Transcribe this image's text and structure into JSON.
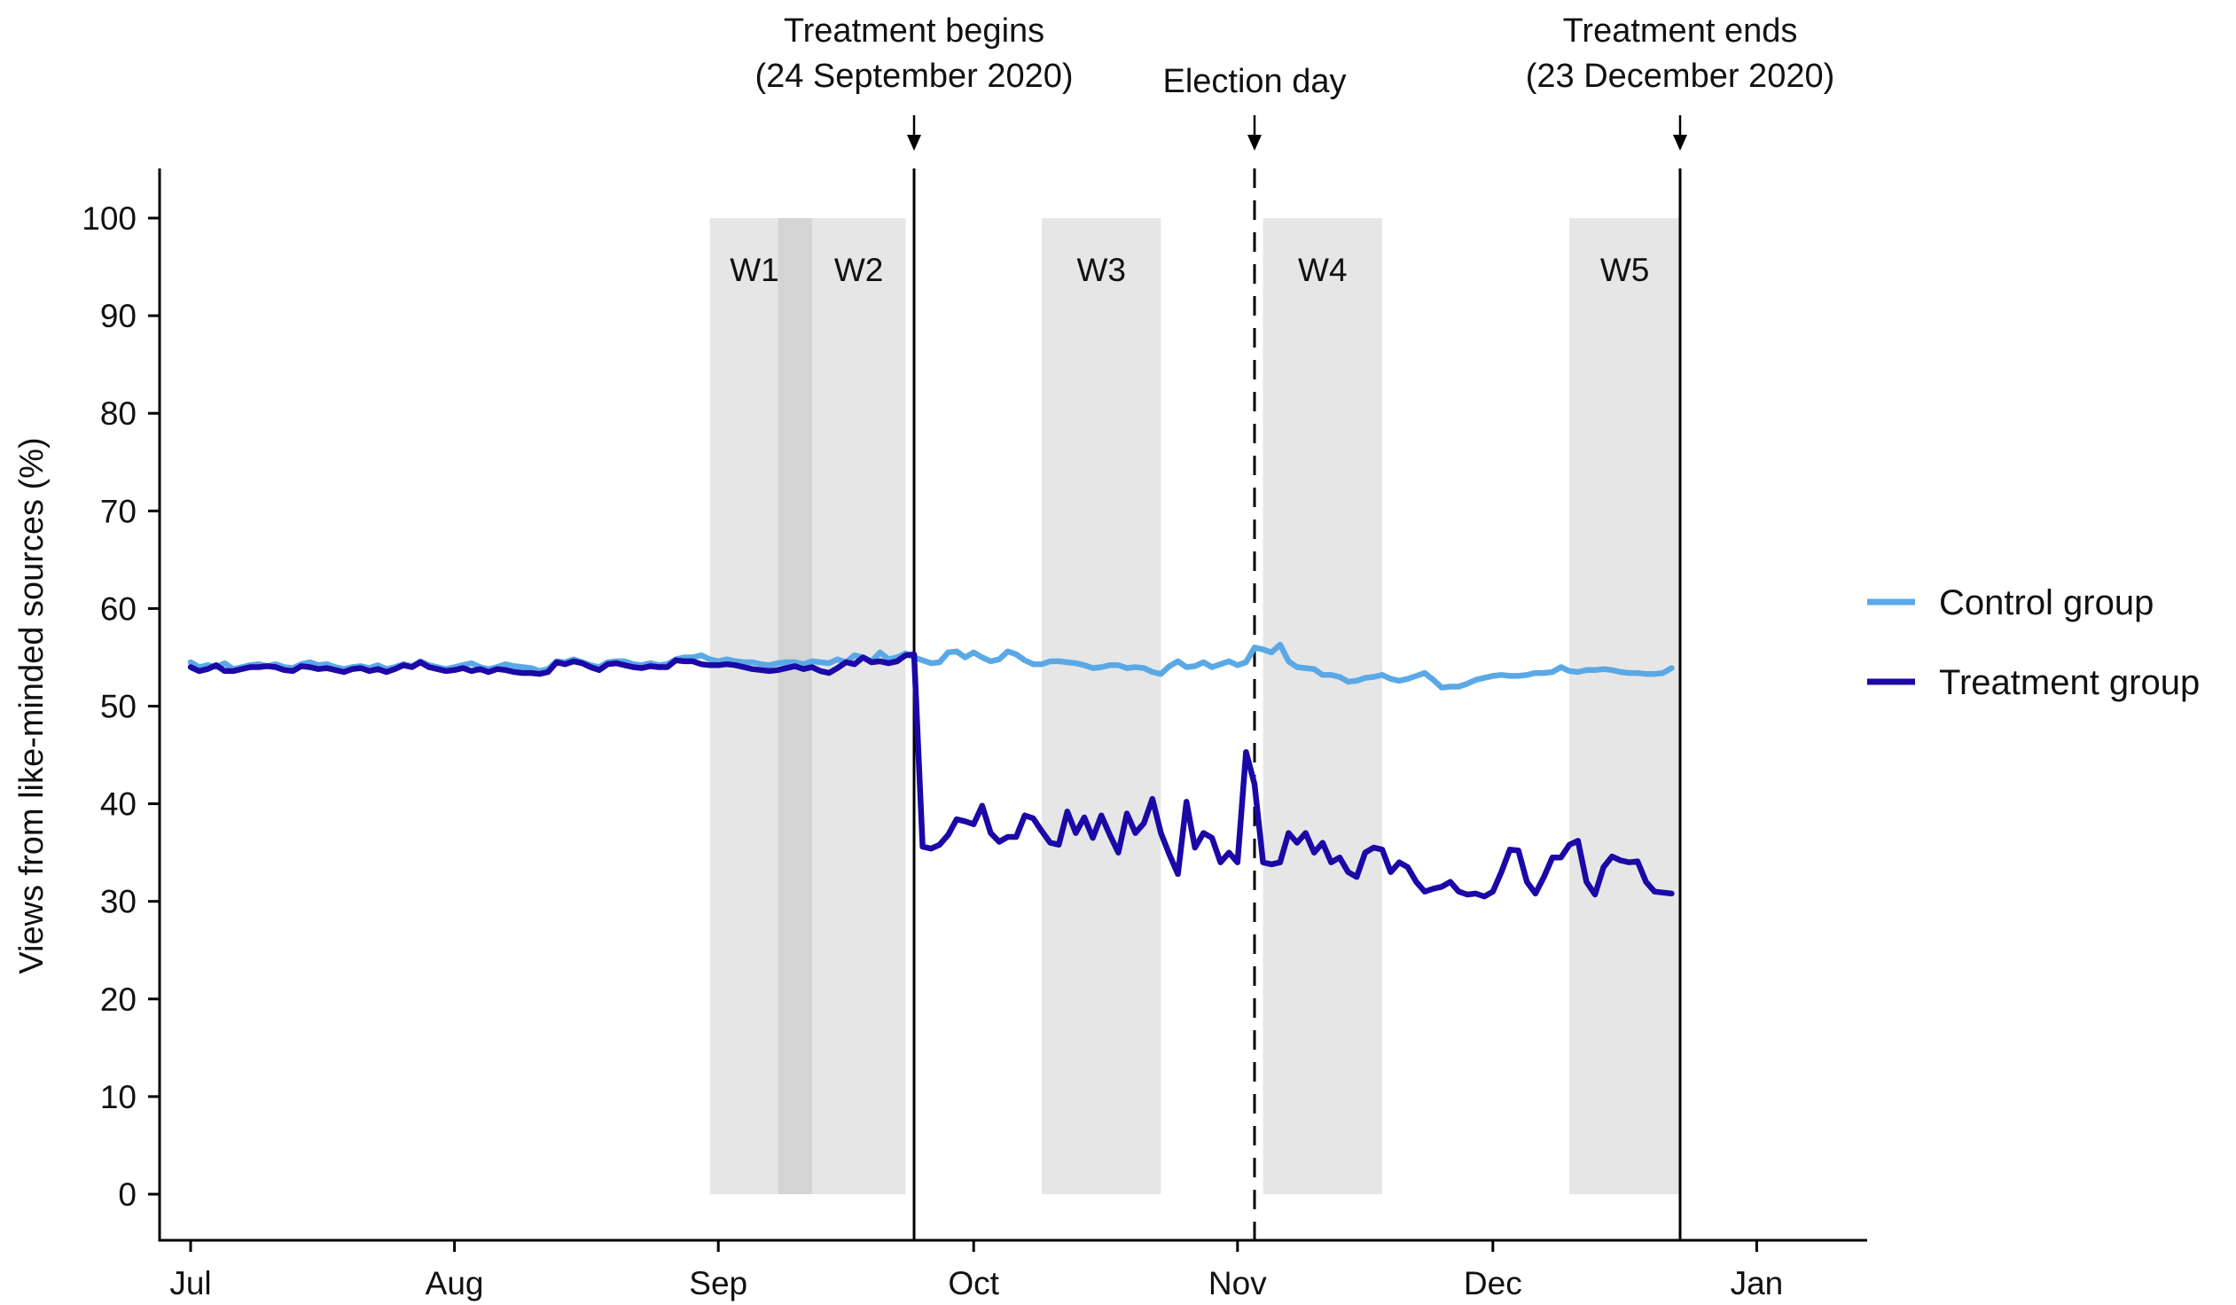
{
  "chart_data": {
    "type": "line",
    "ylabel": "Views from like-minded sources (%)",
    "xlabel": "",
    "ylim": [
      0,
      100
    ],
    "yticks": [
      0,
      10,
      20,
      30,
      40,
      50,
      60,
      70,
      80,
      90,
      100
    ],
    "xticks": [
      {
        "label": "Jul",
        "date": "2020-07-01"
      },
      {
        "label": "Aug",
        "date": "2020-08-01"
      },
      {
        "label": "Sep",
        "date": "2020-09-01"
      },
      {
        "label": "Oct",
        "date": "2020-10-01"
      },
      {
        "label": "Nov",
        "date": "2020-11-01"
      },
      {
        "label": "Dec",
        "date": "2020-12-01"
      },
      {
        "label": "Jan",
        "date": "2021-01-01"
      }
    ],
    "grid": false,
    "legend_position": "right",
    "annotations": [
      {
        "id": "treatment-begins",
        "line1": "Treatment begins",
        "line2": "(24 September 2020)",
        "date": "2020-09-24",
        "style": "solid"
      },
      {
        "id": "election-day",
        "line1": "Election day",
        "line2": "",
        "date": "2020-11-03",
        "style": "dashed"
      },
      {
        "id": "treatment-ends",
        "line1": "Treatment ends",
        "line2": "(23 December 2020)",
        "date": "2020-12-23",
        "style": "solid"
      }
    ],
    "windows": [
      {
        "label": "W1",
        "start": "2020-08-31",
        "end": "2020-09-12"
      },
      {
        "label": "W2",
        "start": "2020-09-08",
        "end": "2020-09-23"
      },
      {
        "label": "W3",
        "start": "2020-10-09",
        "end": "2020-10-23"
      },
      {
        "label": "W4",
        "start": "2020-11-04",
        "end": "2020-11-18"
      },
      {
        "label": "W5",
        "start": "2020-12-10",
        "end": "2020-12-23"
      }
    ],
    "series": [
      {
        "name": "Control group",
        "color": "#5aa9e6",
        "values_by_month": {
          "2020-07": [
            54.5,
            54.0,
            54.2,
            54.0,
            54.4,
            53.8,
            54.0,
            54.2,
            54.3,
            54.1,
            54.3,
            54.0,
            53.9,
            54.3,
            54.5,
            54.2,
            54.3,
            54.0,
            53.8,
            54.0,
            54.1,
            53.9,
            54.2,
            53.8,
            54.0,
            54.3,
            54.1,
            54.6,
            54.2,
            54.0,
            53.8
          ],
          "2020-08": [
            54.0,
            54.2,
            54.4,
            54.0,
            53.8,
            54.0,
            54.3,
            54.1,
            54.0,
            53.9,
            53.6,
            53.8,
            54.6,
            54.5,
            54.8,
            54.5,
            54.2,
            54.0,
            54.5,
            54.6,
            54.6,
            54.3,
            54.2,
            54.4,
            54.2,
            54.3,
            54.8,
            55.0,
            55.0,
            55.2,
            54.8
          ],
          "2020-09": [
            54.6,
            54.8,
            54.6,
            54.5,
            54.5,
            54.3,
            54.2,
            54.4,
            54.5,
            54.5,
            54.3,
            54.6,
            54.5,
            54.4,
            54.8,
            54.5,
            55.2,
            55.0,
            54.6,
            55.5,
            54.8,
            55.0,
            55.4,
            55.0,
            54.7,
            54.4,
            54.5,
            55.5,
            55.6,
            55.0
          ],
          "2020-10": [
            55.5,
            55.0,
            54.6,
            54.8,
            55.6,
            55.3,
            54.7,
            54.3,
            54.3,
            54.6,
            54.6,
            54.5,
            54.4,
            54.2,
            53.9,
            54.0,
            54.2,
            54.2,
            53.9,
            54.0,
            53.9,
            53.5,
            53.3,
            54.1,
            54.6,
            54.0,
            54.1,
            54.5,
            54.0,
            54.3,
            54.6
          ],
          "2020-11": [
            54.2,
            54.5,
            56.0,
            55.8,
            55.5,
            56.3,
            54.6,
            54.0,
            53.9,
            53.8,
            53.2,
            53.2,
            53.0,
            52.5,
            52.6,
            52.9,
            53.0,
            53.2,
            52.8,
            52.6,
            52.8,
            53.1,
            53.4,
            52.7,
            51.9,
            52.0,
            52.0,
            52.3,
            52.7,
            52.9
          ],
          "2020-12": [
            53.1,
            53.2,
            53.1,
            53.1,
            53.2,
            53.4,
            53.4,
            53.5,
            54.0,
            53.6,
            53.5,
            53.7,
            53.7,
            53.8,
            53.7,
            53.5,
            53.4,
            53.4,
            53.3,
            53.3,
            53.4,
            53.9
          ]
        }
      },
      {
        "name": "Treatment group",
        "color": "#1b08a6",
        "values_by_month": {
          "2020-07": [
            54.0,
            53.6,
            53.8,
            54.2,
            53.6,
            53.6,
            53.8,
            54.0,
            54.0,
            54.1,
            54.0,
            53.7,
            53.6,
            54.1,
            54.0,
            53.8,
            53.9,
            53.7,
            53.5,
            53.8,
            53.9,
            53.6,
            53.8,
            53.5,
            53.8,
            54.2,
            54.0,
            54.5,
            54.0,
            53.8,
            53.6
          ],
          "2020-08": [
            53.7,
            53.9,
            53.6,
            53.8,
            53.5,
            53.8,
            53.7,
            53.5,
            53.4,
            53.4,
            53.3,
            53.5,
            54.5,
            54.3,
            54.6,
            54.4,
            54.0,
            53.7,
            54.3,
            54.4,
            54.2,
            54.0,
            53.9,
            54.1,
            54.0,
            54.0,
            54.7,
            54.6,
            54.6,
            54.3,
            54.2
          ],
          "2020-09": [
            54.2,
            54.3,
            54.2,
            54.0,
            53.8,
            53.7,
            53.6,
            53.7,
            53.9,
            54.1,
            53.8,
            54.0,
            53.6,
            53.4,
            53.9,
            54.5,
            54.3,
            55.0,
            54.5,
            54.6,
            54.4,
            54.6,
            55.2,
            55.3,
            35.6,
            35.4,
            35.8,
            36.8,
            38.4,
            38.2
          ],
          "2020-10": [
            37.9,
            39.8,
            37.0,
            36.1,
            36.6,
            36.6,
            38.8,
            38.5,
            37.2,
            36.0,
            35.8,
            39.2,
            37.0,
            38.6,
            36.5,
            38.8,
            36.8,
            35.0,
            39.0,
            37.0,
            38.0,
            40.5,
            37.0,
            34.8,
            32.8,
            40.2,
            35.5,
            37.0,
            36.5,
            34.0,
            35.0
          ],
          "2020-11": [
            34.0,
            45.3,
            42.0,
            34.0,
            33.8,
            34.0,
            37.0,
            36.0,
            37.0,
            35.0,
            36.0,
            34.0,
            34.5,
            33.0,
            32.5,
            35.0,
            35.5,
            35.3,
            33.0,
            34.0,
            33.5,
            32.0,
            31.0,
            31.3,
            31.5,
            32.0,
            31.0,
            30.7,
            30.8,
            30.5
          ],
          "2020-12": [
            31.0,
            33.0,
            35.3,
            35.2,
            32.0,
            30.8,
            32.5,
            34.5,
            34.5,
            35.8,
            36.2,
            32.0,
            30.7,
            33.5,
            34.6,
            34.2,
            34.0,
            34.1,
            32.0,
            31.0,
            30.9,
            30.8
          ]
        }
      }
    ]
  }
}
